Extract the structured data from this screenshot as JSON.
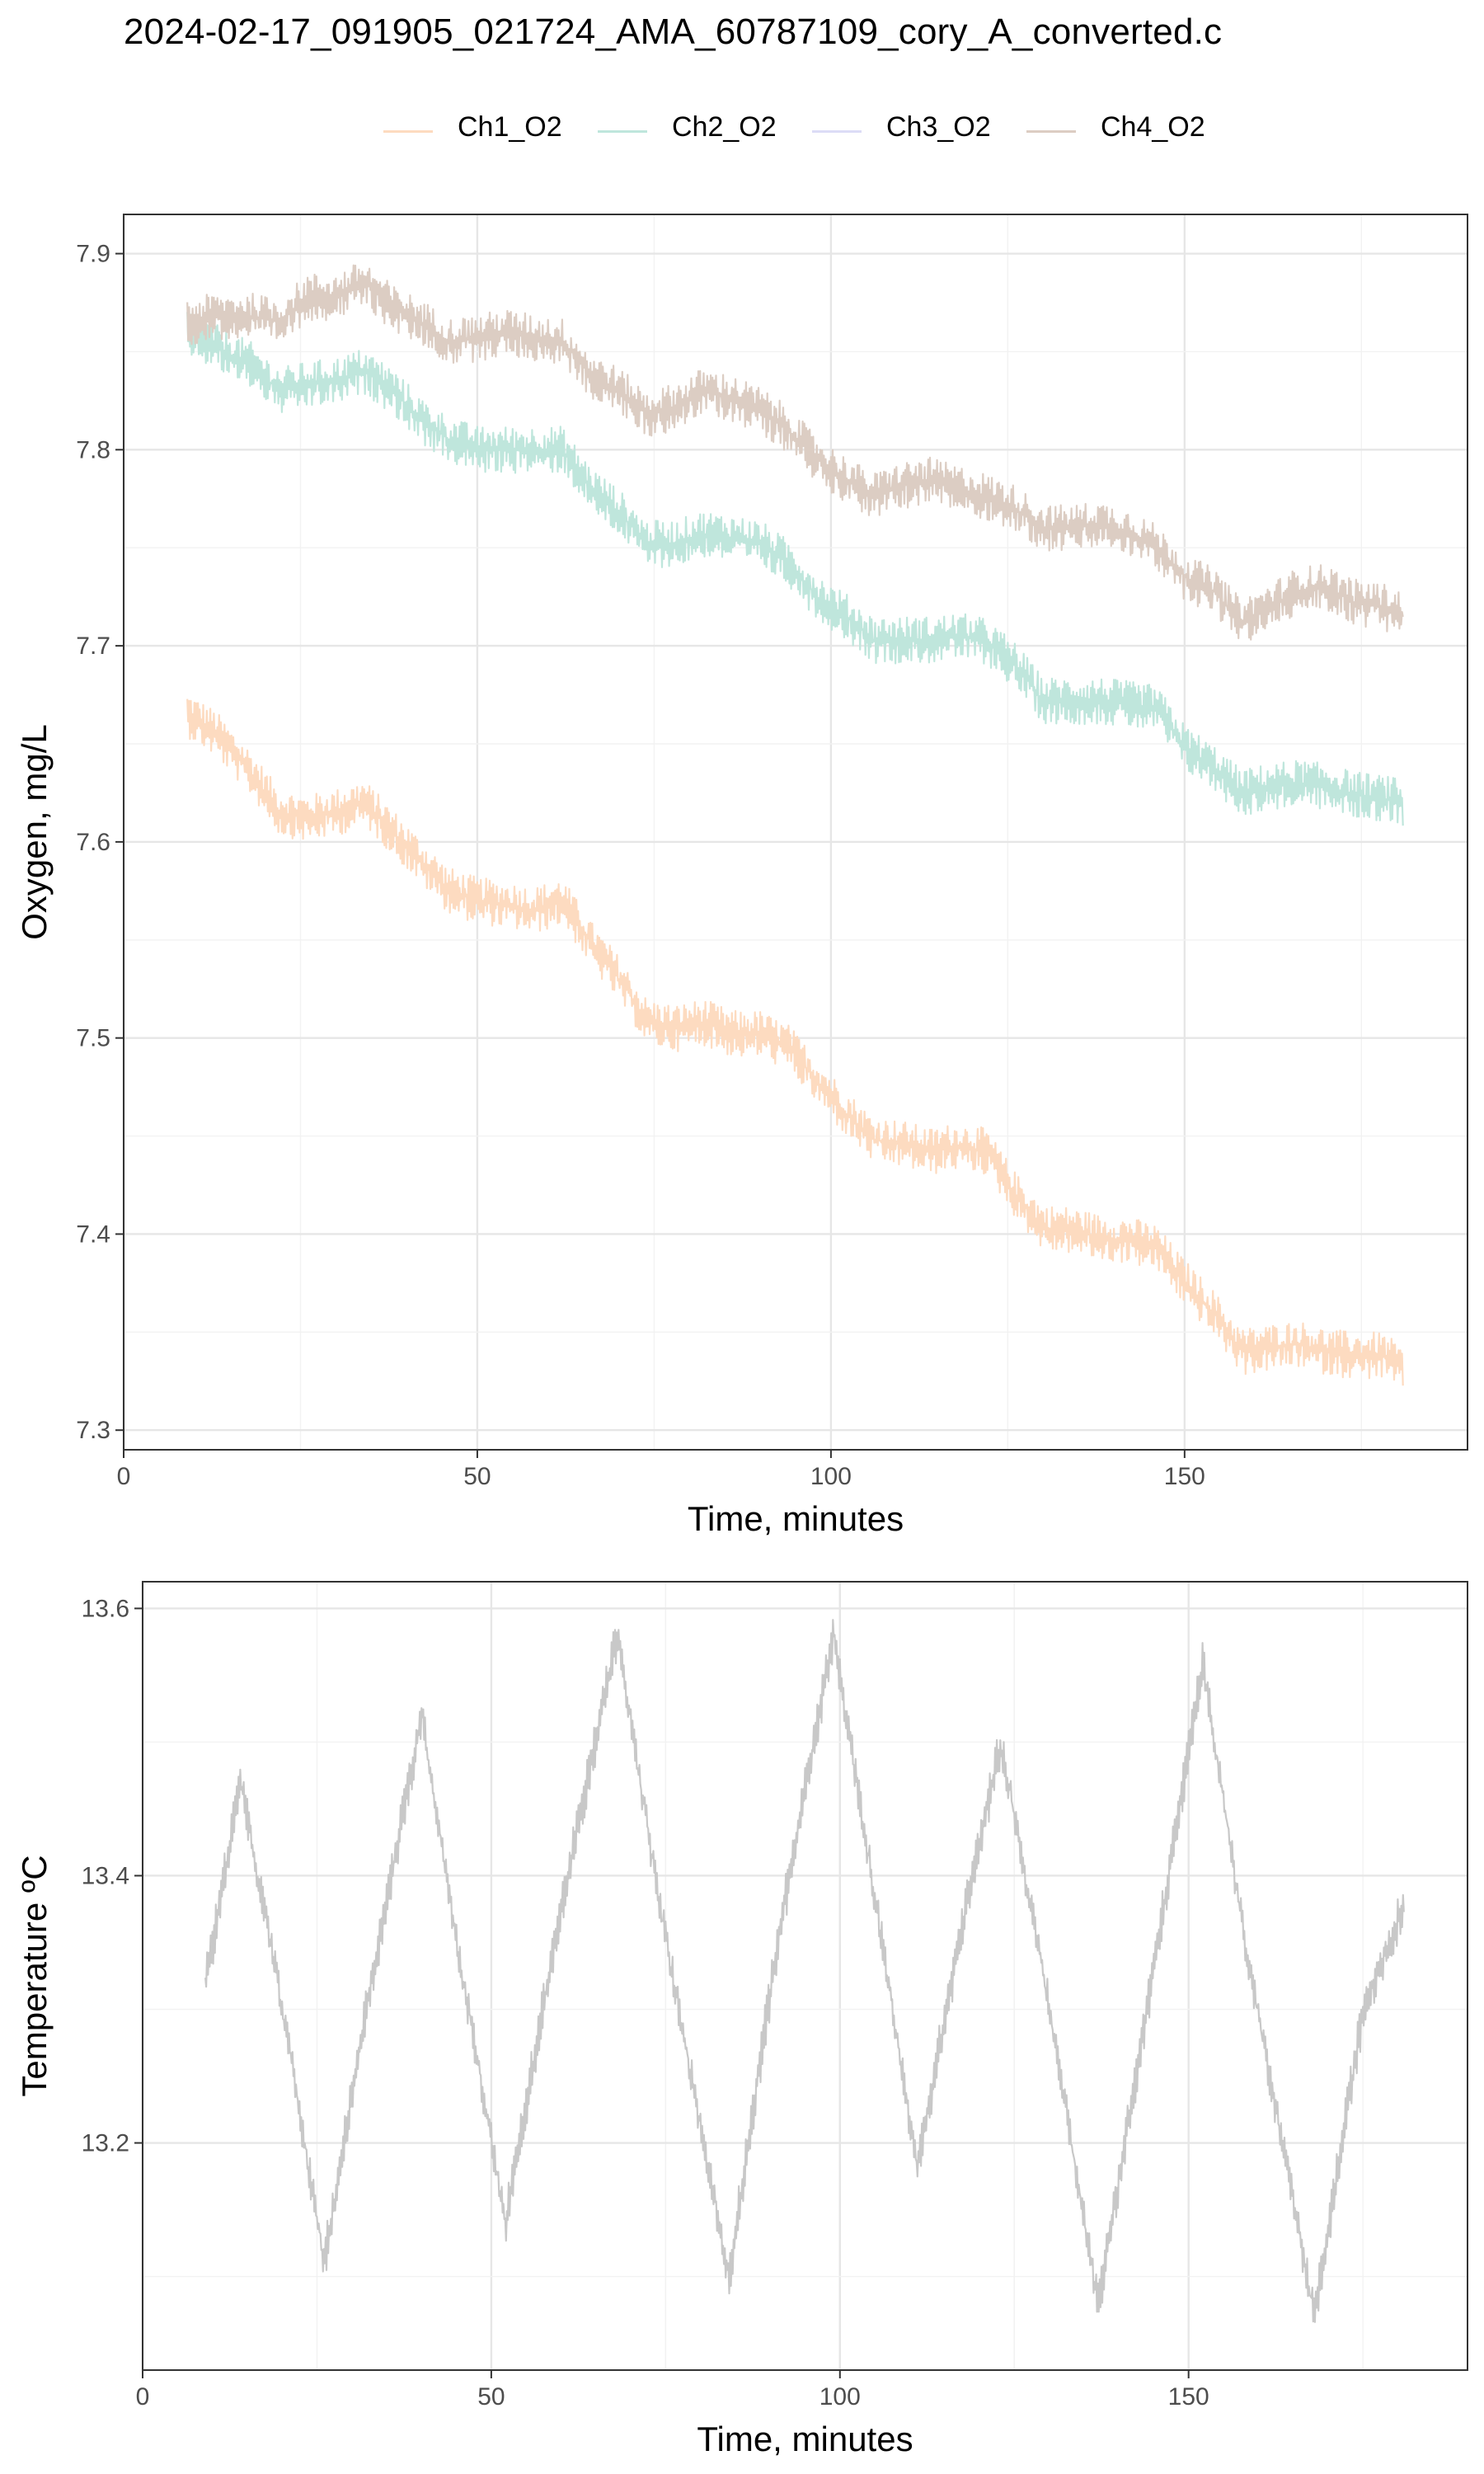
{
  "title": "2024-02-17_091905_021724_AMA_60787109_cory_A_converted.c",
  "chart_data": [
    {
      "type": "line",
      "title": "2024-02-17_091905_021724_AMA_60787109_cory_A_converted.c",
      "xlabel": "Time, minutes",
      "ylabel": "Oxygen, mg/L",
      "xlim": [
        0,
        190
      ],
      "ylim": [
        7.29,
        7.92
      ],
      "x_ticks": [
        0,
        50,
        100,
        150
      ],
      "y_ticks": [
        7.3,
        7.4,
        7.5,
        7.6,
        7.7,
        7.8,
        7.9
      ],
      "grid": true,
      "legend_position": "top",
      "noise_band": 0.012,
      "series": [
        {
          "name": "Ch1_O2",
          "color": "#fddbc0",
          "x": [
            9,
            13,
            18,
            22,
            26,
            30,
            34,
            38,
            42,
            46,
            50,
            54,
            58,
            62,
            66,
            70,
            74,
            78,
            82,
            86,
            90,
            94,
            98,
            102,
            106,
            110,
            114,
            118,
            122,
            126,
            130,
            134,
            138,
            142,
            146,
            150,
            154,
            158,
            162,
            166,
            170,
            174,
            178,
            181
          ],
          "values": [
            7.665,
            7.655,
            7.635,
            7.615,
            7.612,
            7.615,
            7.62,
            7.605,
            7.59,
            7.575,
            7.57,
            7.568,
            7.565,
            7.57,
            7.548,
            7.53,
            7.508,
            7.505,
            7.508,
            7.502,
            7.502,
            7.495,
            7.478,
            7.462,
            7.448,
            7.446,
            7.442,
            7.445,
            7.442,
            7.42,
            7.403,
            7.402,
            7.398,
            7.397,
            7.393,
            7.375,
            7.36,
            7.34,
            7.342,
            7.344,
            7.34,
            7.338,
            7.338,
            7.33
          ]
        },
        {
          "name": "Ch2_O2",
          "color": "#bfe6dc",
          "x": [
            9,
            13,
            18,
            22,
            26,
            30,
            34,
            38,
            42,
            46,
            50,
            54,
            58,
            62,
            66,
            70,
            74,
            78,
            82,
            86,
            90,
            94,
            98,
            102,
            106,
            110,
            114,
            118,
            122,
            126,
            130,
            134,
            138,
            142,
            146,
            150,
            154,
            158,
            162,
            166,
            170,
            174,
            178,
            181
          ],
          "values": [
            7.86,
            7.852,
            7.843,
            7.83,
            7.833,
            7.835,
            7.84,
            7.83,
            7.815,
            7.805,
            7.8,
            7.8,
            7.8,
            7.8,
            7.78,
            7.768,
            7.752,
            7.752,
            7.757,
            7.755,
            7.752,
            7.742,
            7.725,
            7.715,
            7.703,
            7.703,
            7.703,
            7.705,
            7.702,
            7.69,
            7.672,
            7.672,
            7.672,
            7.67,
            7.668,
            7.648,
            7.638,
            7.625,
            7.628,
            7.63,
            7.628,
            7.624,
            7.622,
            7.62
          ]
        },
        {
          "name": "Ch3_O2",
          "color": "#dcdcf6",
          "x": [],
          "values": []
        },
        {
          "name": "Ch4_O2",
          "color": "#dccdc3",
          "x": [
            9,
            13,
            18,
            22,
            26,
            30,
            34,
            38,
            42,
            46,
            50,
            54,
            58,
            62,
            66,
            70,
            74,
            78,
            82,
            86,
            90,
            94,
            98,
            102,
            106,
            110,
            114,
            118,
            122,
            126,
            130,
            134,
            138,
            142,
            146,
            150,
            154,
            158,
            162,
            166,
            170,
            174,
            178,
            181
          ],
          "values": [
            7.865,
            7.868,
            7.868,
            7.865,
            7.878,
            7.878,
            7.885,
            7.872,
            7.865,
            7.855,
            7.857,
            7.86,
            7.857,
            7.855,
            7.838,
            7.83,
            7.818,
            7.822,
            7.83,
            7.826,
            7.82,
            7.81,
            7.795,
            7.785,
            7.776,
            7.782,
            7.784,
            7.78,
            7.776,
            7.77,
            7.76,
            7.76,
            7.762,
            7.758,
            7.75,
            7.735,
            7.728,
            7.712,
            7.72,
            7.728,
            7.73,
            7.722,
            7.72,
            7.716
          ]
        }
      ]
    },
    {
      "type": "line",
      "xlabel": "Time, minutes",
      "ylabel": "Temperature ºC",
      "xlim": [
        0,
        190
      ],
      "ylim": [
        13.03,
        13.62
      ],
      "x_ticks": [
        0,
        50,
        100,
        150
      ],
      "y_ticks": [
        13.2,
        13.4,
        13.6
      ],
      "grid": true,
      "noise_band": 0.016,
      "series": [
        {
          "color": "#c8c8c8",
          "x": [
            9,
            14,
            20,
            26,
            32,
            40,
            45,
            52,
            59,
            68,
            74,
            84,
            91,
            99,
            106,
            111,
            117,
            123,
            130,
            137,
            144,
            152,
            158,
            168,
            175,
            181
          ],
          "values": [
            13.32,
            13.47,
            13.3,
            13.11,
            13.3,
            13.52,
            13.35,
            13.14,
            13.35,
            13.58,
            13.38,
            13.1,
            13.35,
            13.58,
            13.35,
            13.18,
            13.35,
            13.5,
            13.3,
            13.08,
            13.3,
            13.56,
            13.35,
            13.07,
            13.3,
            13.38
          ]
        }
      ]
    }
  ]
}
